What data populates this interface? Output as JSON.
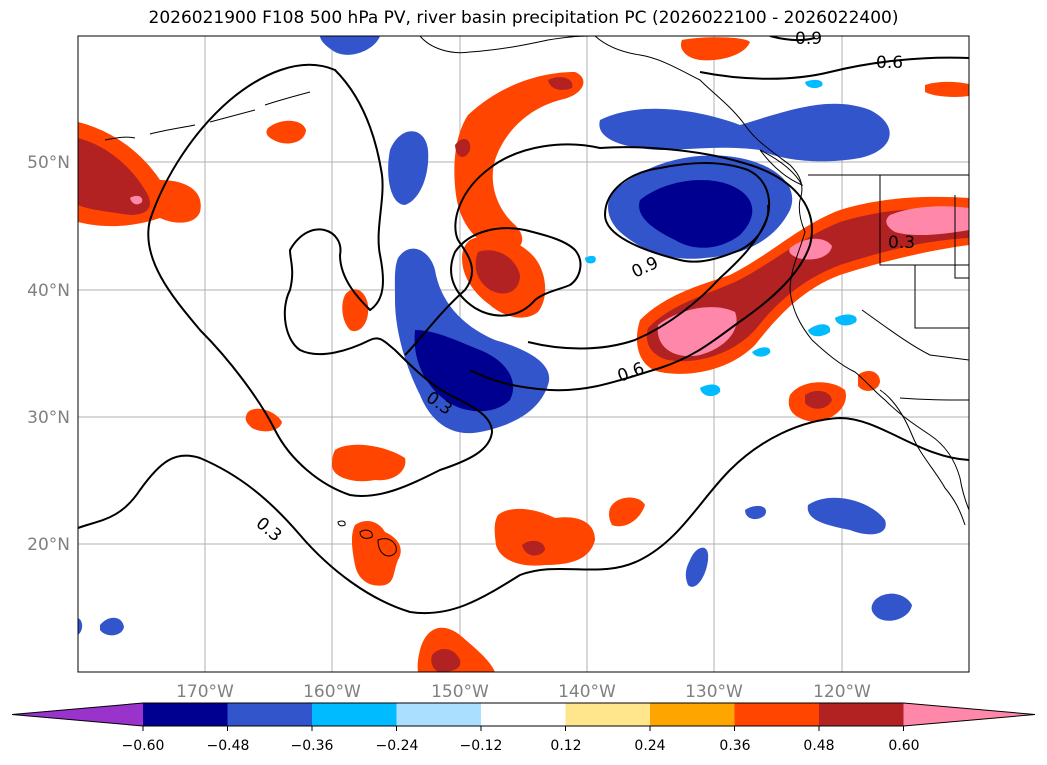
{
  "title": "2026021900 F108 500 hPa PV, river basin precipitation PC (2026022100 - 2026022400)",
  "map": {
    "lat_ticks": [
      "50°N",
      "40°N",
      "30°N",
      "20°N"
    ],
    "lon_ticks": [
      "170°W",
      "160°W",
      "150°W",
      "140°W",
      "130°W",
      "120°W"
    ],
    "contour_labels": [
      "0.9",
      "0.6",
      "0.3",
      "0.9",
      "0.6",
      "0.3",
      "0.3"
    ]
  },
  "colorbar": {
    "ticks": [
      "−0.60",
      "−0.48",
      "−0.36",
      "−0.24",
      "−0.12",
      "0.12",
      "0.24",
      "0.36",
      "0.48",
      "0.60"
    ],
    "colors": [
      "#9933cc",
      "#000090",
      "#3355cc",
      "#00bbff",
      "#aadfff",
      "#ffffff",
      "#ffe68c",
      "#ffa500",
      "#ff4500",
      "#b22222",
      "#ff88aa"
    ]
  }
}
